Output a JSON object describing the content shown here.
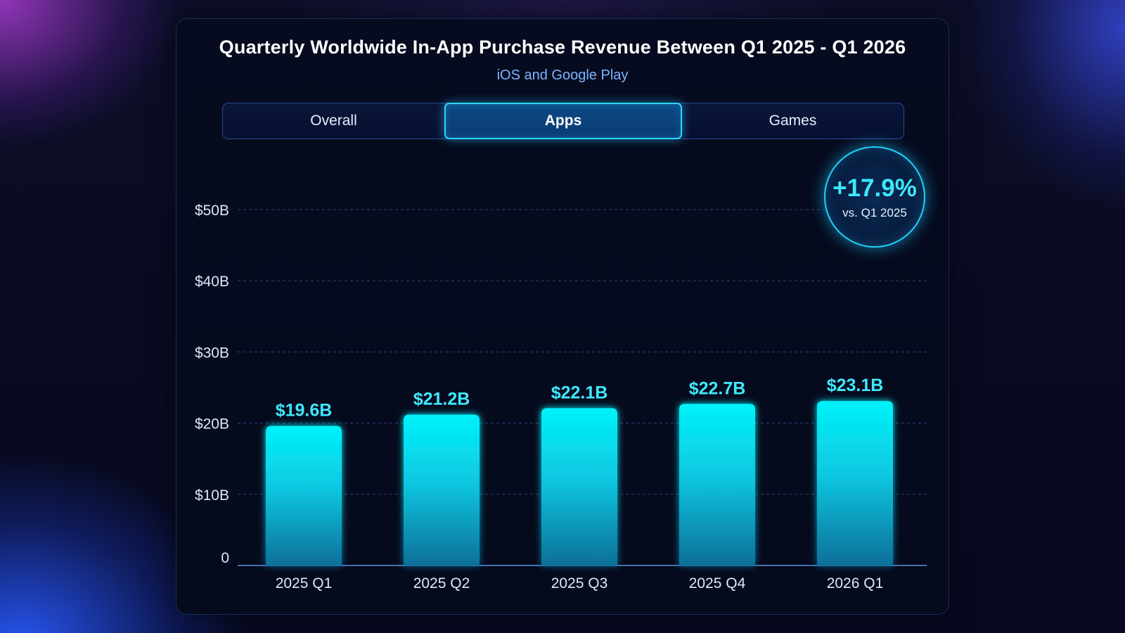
{
  "header": {
    "title": "Quarterly Worldwide In-App Purchase Revenue Between Q1 2025 - Q1 2026",
    "subtitle": "iOS and Google Play"
  },
  "tabs": [
    {
      "label": "Overall",
      "active": false
    },
    {
      "label": "Apps",
      "active": true
    },
    {
      "label": "Games",
      "active": false
    }
  ],
  "badge": {
    "value": "+17.9%",
    "label": "vs. Q1 2025"
  },
  "colors": {
    "accent": "#22d3ff",
    "bar_top": "#00f0f8",
    "bar_bottom": "#0a7fa8",
    "grid": "#2a3f6a"
  },
  "chart_data": {
    "type": "bar",
    "title": "Quarterly Worldwide In-App Purchase Revenue Between Q1 2025 - Q1 2026",
    "subtitle": "iOS and Google Play",
    "xlabel": "",
    "ylabel": "",
    "categories": [
      "2025 Q1",
      "2025 Q2",
      "2025 Q3",
      "2025 Q4",
      "2026 Q1"
    ],
    "values": [
      19.6,
      21.2,
      22.1,
      22.7,
      23.1
    ],
    "data_labels": [
      "$19.6B",
      "$21.2B",
      "$22.1B",
      "$22.7B",
      "$23.1B"
    ],
    "ylim": [
      0,
      50
    ],
    "yticks": [
      0,
      10,
      20,
      30,
      40,
      50
    ],
    "ytick_labels": [
      "0",
      "$10B",
      "$20B",
      "$30B",
      "$40B",
      "$50B"
    ],
    "grid": true
  }
}
